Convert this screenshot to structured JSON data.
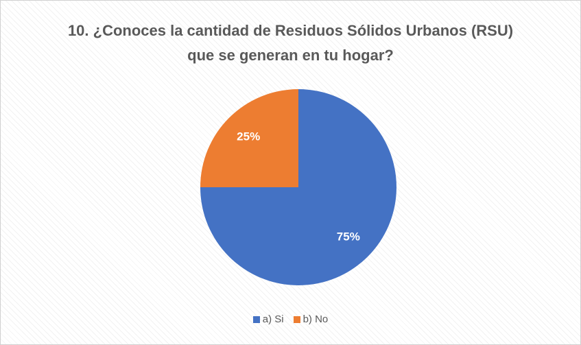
{
  "chart_data": {
    "type": "pie",
    "title": "10. ¿Conoces la cantidad de Residuos Sólidos Urbanos (RSU) que se generan en tu hogar?",
    "categories": [
      "a) Si",
      "b) No"
    ],
    "values": [
      75,
      25
    ],
    "value_labels": [
      "75%",
      "25%"
    ],
    "colors": [
      "#4472c4",
      "#ed7d31"
    ],
    "legend": "bottom"
  }
}
